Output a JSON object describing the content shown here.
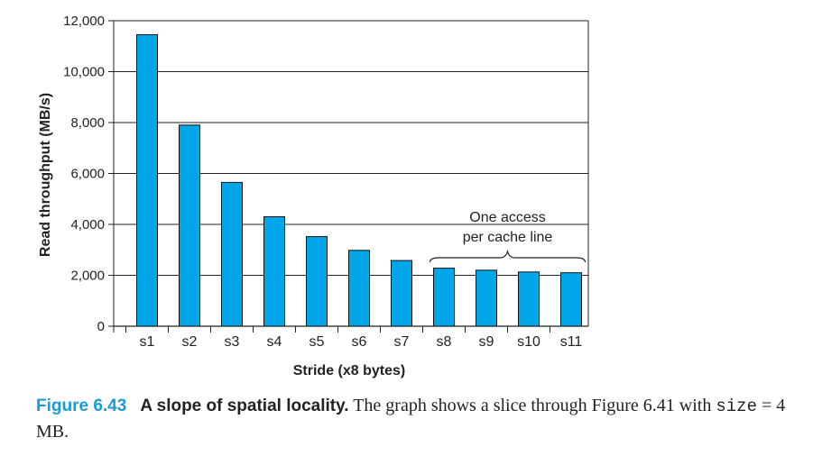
{
  "chart_data": {
    "type": "bar",
    "categories": [
      "s1",
      "s2",
      "s3",
      "s4",
      "s5",
      "s6",
      "s7",
      "s8",
      "s9",
      "s10",
      "s11"
    ],
    "values": [
      11450,
      7900,
      5650,
      4300,
      3520,
      2980,
      2580,
      2280,
      2200,
      2130,
      2100
    ],
    "xlabel": "Stride (x8 bytes)",
    "ylabel": "Read throughput (MB/s)",
    "ylim": [
      0,
      12000
    ],
    "yticks": [
      0,
      2000,
      4000,
      6000,
      8000,
      10000,
      12000
    ],
    "ytick_labels": [
      "0",
      "2,000",
      "4,000",
      "6,000",
      "8,000",
      "10,000",
      "12,000"
    ],
    "grid": true,
    "bar_color": "#00a6e8",
    "annotation": {
      "line1": "One access",
      "line2": "per cache line",
      "from": "s8",
      "to": "s11"
    }
  },
  "caption": {
    "label": "Figure 6.43",
    "title": "A slope of spatial locality.",
    "text": " The graph shows a slice through Figure 6.41 with ",
    "code": "size",
    "eq": " = 4 MB."
  }
}
